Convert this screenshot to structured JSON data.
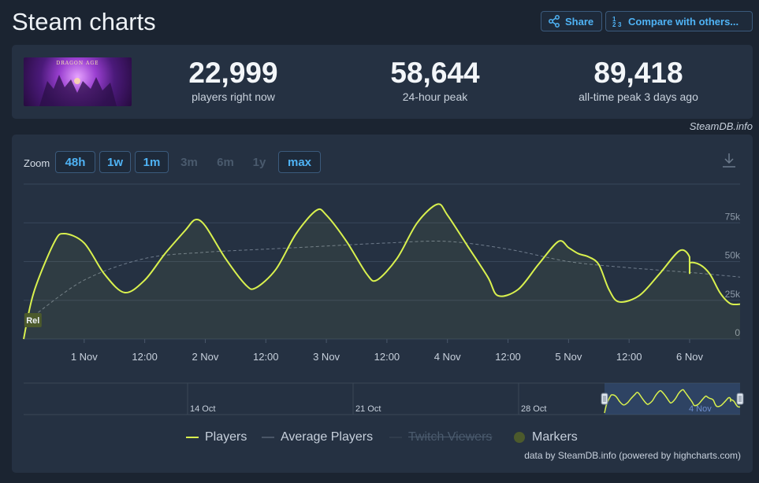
{
  "header": {
    "title": "Steam charts",
    "share_label": "Share",
    "compare_label": "Compare with others..."
  },
  "game": {
    "logo_text": "DRAGON AGE"
  },
  "stats": [
    {
      "value": "22,999",
      "label": "players right now"
    },
    {
      "value": "58,644",
      "label": "24-hour peak"
    },
    {
      "value": "89,418",
      "label": "all-time peak 3 days ago"
    }
  ],
  "credit_top": "SteamDB.info",
  "zoom": {
    "label": "Zoom",
    "options": [
      {
        "label": "48h",
        "enabled": true
      },
      {
        "label": "1w",
        "enabled": true
      },
      {
        "label": "1m",
        "enabled": true
      },
      {
        "label": "3m",
        "enabled": false
      },
      {
        "label": "6m",
        "enabled": false
      },
      {
        "label": "1y",
        "enabled": false
      },
      {
        "label": "max",
        "enabled": true
      }
    ]
  },
  "legend": {
    "players": "Players",
    "average": "Average Players",
    "twitch": "Twitch Viewers",
    "markers": "Markers"
  },
  "credit_bottom": "data by SteamDB.info (powered by highcharts.com)",
  "colors": {
    "players": "#d9f14e",
    "average": "#6f7c8c",
    "accent": "#4fb3f5",
    "marker": "#4c5a2c"
  },
  "chart_data": {
    "type": "line",
    "x_unit": "date-time (Oct 31 – Nov 6)",
    "ylim": [
      0,
      100000
    ],
    "y_ticks": [
      {
        "value": 0,
        "label": "0"
      },
      {
        "value": 25000,
        "label": "25k"
      },
      {
        "value": 50000,
        "label": "50k"
      },
      {
        "value": 75000,
        "label": "75k"
      }
    ],
    "x_ticks": [
      {
        "t": "Nov 1 00:00",
        "label": "1 Nov"
      },
      {
        "t": "Nov 1 12:00",
        "label": "12:00"
      },
      {
        "t": "Nov 2 00:00",
        "label": "2 Nov"
      },
      {
        "t": "Nov 2 12:00",
        "label": "12:00"
      },
      {
        "t": "Nov 3 00:00",
        "label": "3 Nov"
      },
      {
        "t": "Nov 3 12:00",
        "label": "12:00"
      },
      {
        "t": "Nov 4 00:00",
        "label": "4 Nov"
      },
      {
        "t": "Nov 4 12:00",
        "label": "12:00"
      },
      {
        "t": "Nov 5 00:00",
        "label": "5 Nov"
      },
      {
        "t": "Nov 5 12:00",
        "label": "12:00"
      },
      {
        "t": "Nov 6 00:00",
        "label": "6 Nov"
      }
    ],
    "series": [
      {
        "name": "Players",
        "points": [
          [
            "Oct 31 12:00",
            0
          ],
          [
            "Oct 31 14:00",
            30000
          ],
          [
            "Oct 31 18:00",
            62000
          ],
          [
            "Oct 31 20:00",
            68000
          ],
          [
            "Nov 1 00:00",
            62000
          ],
          [
            "Nov 1 04:00",
            42000
          ],
          [
            "Nov 1 08:00",
            30000
          ],
          [
            "Nov 1 12:00",
            38000
          ],
          [
            "Nov 1 16:00",
            55000
          ],
          [
            "Nov 1 20:00",
            70000
          ],
          [
            "Nov 1 22:00",
            77000
          ],
          [
            "Nov 2 00:00",
            73000
          ],
          [
            "Nov 2 04:00",
            52000
          ],
          [
            "Nov 2 08:00",
            35000
          ],
          [
            "Nov 2 10:00",
            33000
          ],
          [
            "Nov 2 14:00",
            45000
          ],
          [
            "Nov 2 18:00",
            68000
          ],
          [
            "Nov 2 22:00",
            83000
          ],
          [
            "Nov 3 00:00",
            80000
          ],
          [
            "Nov 3 04:00",
            63000
          ],
          [
            "Nov 3 08:00",
            42000
          ],
          [
            "Nov 3 10:00",
            38000
          ],
          [
            "Nov 3 14:00",
            52000
          ],
          [
            "Nov 3 18:00",
            75000
          ],
          [
            "Nov 3 22:00",
            87000
          ],
          [
            "Nov 4 00:00",
            80000
          ],
          [
            "Nov 4 04:00",
            60000
          ],
          [
            "Nov 4 08:00",
            40000
          ],
          [
            "Nov 4 10:00",
            28000
          ],
          [
            "Nov 4 14:00",
            32000
          ],
          [
            "Nov 4 18:00",
            48000
          ],
          [
            "Nov 4 22:00",
            63000
          ],
          [
            "Nov 5 00:00",
            59000
          ],
          [
            "Nov 5 02:00",
            55000
          ],
          [
            "Nov 5 04:00",
            53000
          ],
          [
            "Nov 5 06:00",
            48000
          ],
          [
            "Nov 5 08:00",
            32000
          ],
          [
            "Nov 5 10:00",
            24000
          ],
          [
            "Nov 5 14:00",
            28000
          ],
          [
            "Nov 5 18:00",
            42000
          ],
          [
            "Nov 5 22:00",
            57000
          ],
          [
            "Nov 5 23:59",
            53000
          ],
          [
            "Nov 6 00:00",
            42000
          ],
          [
            "Nov 6 00:01",
            49000
          ],
          [
            "Nov 6 02:00",
            48000
          ],
          [
            "Nov 6 04:00",
            42000
          ],
          [
            "Nov 6 06:00",
            30000
          ],
          [
            "Nov 6 08:00",
            23000
          ],
          [
            "Nov 6 10:00",
            22500
          ]
        ]
      },
      {
        "name": "Average Players",
        "points": [
          [
            "Oct 31 14:00",
            15000
          ],
          [
            "Nov 1 00:00",
            38000
          ],
          [
            "Nov 1 12:00",
            52000
          ],
          [
            "Nov 2 00:00",
            56000
          ],
          [
            "Nov 2 12:00",
            58000
          ],
          [
            "Nov 3 00:00",
            60000
          ],
          [
            "Nov 3 12:00",
            62000
          ],
          [
            "Nov 4 00:00",
            63000
          ],
          [
            "Nov 4 12:00",
            58000
          ],
          [
            "Nov 5 00:00",
            50000
          ],
          [
            "Nov 5 12:00",
            46000
          ],
          [
            "Nov 6 00:00",
            43000
          ],
          [
            "Nov 6 10:00",
            40000
          ]
        ]
      }
    ],
    "markers": [
      {
        "t": "Oct 31 14:00",
        "label": "Rel"
      }
    ],
    "navigator": {
      "ticks": [
        "14 Oct",
        "21 Oct",
        "28 Oct",
        "4 Nov"
      ]
    }
  }
}
